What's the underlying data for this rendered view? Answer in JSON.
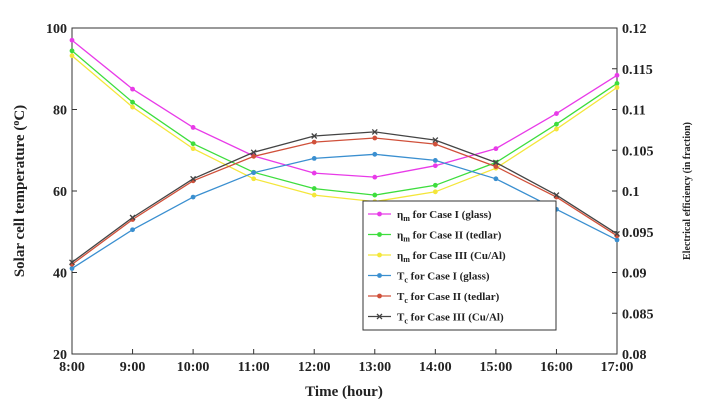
{
  "chart_data": {
    "type": "line",
    "x": [
      "8:00",
      "9:00",
      "10:00",
      "11:00",
      "12:00",
      "13:00",
      "14:00",
      "15:00",
      "16:00",
      "17:00"
    ],
    "xlabel": "Time (hour)",
    "ylabel_left": "Solar cell temperature (°C)",
    "ylabel_right": "Electrical efficiency (in fraction)",
    "ylim_left": [
      20,
      100
    ],
    "yticks_left": [
      "20",
      "40",
      "60",
      "80",
      "100"
    ],
    "ylim_right": [
      0.08,
      0.12
    ],
    "yticks_right": [
      "0.08",
      "0.085",
      "0.09",
      "0.095",
      "0.1",
      "0.105",
      "0.11",
      "0.115",
      "0.12"
    ],
    "legend_position": "bottom-right",
    "grid": false,
    "series": [
      {
        "name": "η for Case I (glass)",
        "symbol": "η",
        "sub": "m",
        "rest": " for Case I (glass)",
        "axis": "right",
        "color": "#e83be8",
        "marker": "dot",
        "values": [
          0.1185,
          0.1125,
          0.1078,
          0.1043,
          0.1022,
          0.1017,
          0.1031,
          0.1052,
          0.1095,
          0.1142
        ]
      },
      {
        "name": "η for Case II (tedlar)",
        "symbol": "η",
        "sub": "m",
        "rest": " for Case II (tedlar)",
        "axis": "right",
        "color": "#3ddd3d",
        "marker": "dot",
        "values": [
          0.1172,
          0.1109,
          0.1058,
          0.1023,
          0.1003,
          0.0995,
          0.1007,
          0.1035,
          0.1082,
          0.1132
        ]
      },
      {
        "name": "η for Case III (Cu/Al)",
        "symbol": "η",
        "sub": "m",
        "rest": " for Case III (Cu/Al)",
        "axis": "right",
        "color": "#f4e63a",
        "marker": "dot",
        "values": [
          0.1166,
          0.1103,
          0.1052,
          0.1015,
          0.0995,
          0.0987,
          0.0999,
          0.1028,
          0.1076,
          0.1127
        ]
      },
      {
        "name": "T for Case I (glass)",
        "symbol": "T",
        "sub": "c",
        "rest": " for Case I (glass)",
        "axis": "left",
        "color": "#3a8fd0",
        "marker": "dot",
        "values": [
          41,
          50.5,
          58.5,
          64.5,
          68,
          69,
          67.5,
          63,
          55.5,
          48
        ]
      },
      {
        "name": "T for Case II (tedlar)",
        "symbol": "T",
        "sub": "c",
        "rest": " for Case II (tedlar)",
        "axis": "left",
        "color": "#d0503a",
        "marker": "dot",
        "values": [
          42,
          53,
          62.5,
          68.5,
          72,
          73,
          71.5,
          66,
          58.5,
          49
        ]
      },
      {
        "name": "T for Case III (Cu/Al)",
        "symbol": "T",
        "sub": "c",
        "rest": " for Case III (Cu/Al)",
        "axis": "left",
        "color": "#444444",
        "marker": "x",
        "values": [
          42.5,
          53.5,
          63,
          69.5,
          73.5,
          74.5,
          72.5,
          67,
          59,
          49.5
        ]
      }
    ]
  }
}
